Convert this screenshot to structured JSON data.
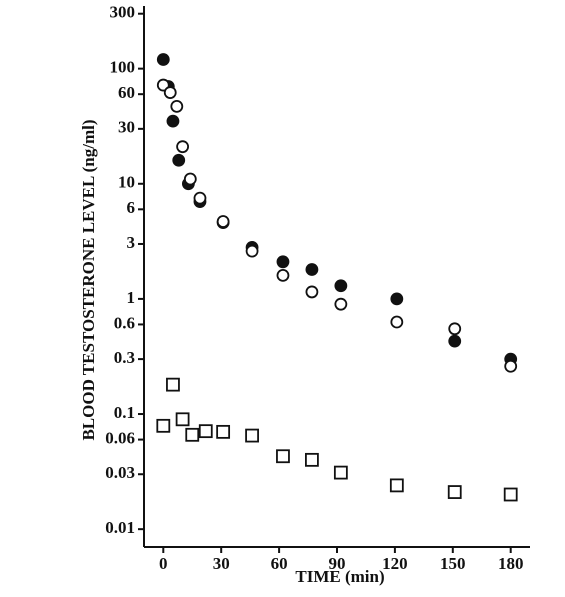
{
  "chart_data": {
    "type": "scatter",
    "y_label": "BLOOD TESTOSTERONE LEVEL (ng/ml)",
    "x_label": "TIME (min)",
    "log_y": true,
    "xlim": [
      -10,
      190
    ],
    "xticks": [
      0,
      30,
      60,
      90,
      120,
      150,
      180
    ],
    "ylim": [
      0.007,
      350
    ],
    "yticks": [
      0.01,
      0.03,
      0.06,
      0.1,
      0.3,
      0.6,
      1,
      3,
      6,
      10,
      30,
      60,
      100,
      300
    ],
    "series": [
      {
        "marker": "filled-circle",
        "color": "#111111",
        "x": [
          0,
          2.6,
          5,
          8,
          13,
          19,
          31,
          46,
          62,
          77,
          92,
          121,
          151,
          180
        ],
        "values": [
          120,
          70,
          35,
          16,
          10,
          7,
          4.6,
          2.8,
          2.1,
          1.8,
          1.3,
          1.0,
          0.43,
          0.3
        ]
      },
      {
        "marker": "open-circle",
        "color": "#111111",
        "x": [
          0,
          3.6,
          7,
          10,
          14,
          19,
          31,
          46,
          62,
          77,
          92,
          121,
          151,
          180
        ],
        "values": [
          72,
          62,
          47,
          21,
          11,
          7.5,
          4.7,
          2.6,
          1.6,
          1.15,
          0.9,
          0.63,
          0.55,
          0.26
        ]
      },
      {
        "marker": "open-square",
        "color": "#111111",
        "x": [
          0,
          5,
          10,
          15,
          22,
          31,
          46,
          62,
          77,
          92,
          121,
          151,
          180
        ],
        "values": [
          0.079,
          0.18,
          0.09,
          0.066,
          0.071,
          0.07,
          0.065,
          0.043,
          0.04,
          0.031,
          0.024,
          0.021,
          0.02
        ]
      }
    ]
  }
}
